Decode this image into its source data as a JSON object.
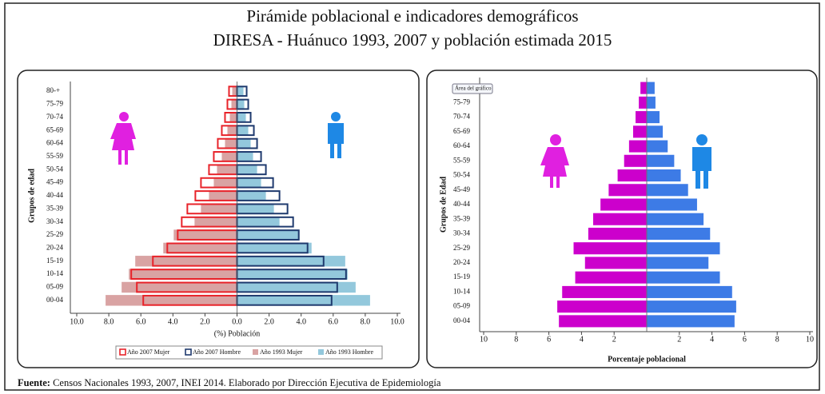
{
  "title": "Pirámide poblacional e indicadores demográficos",
  "subtitle": "DIRESA - Huánuco 1993, 2007 y población estimada 2015",
  "chart_data": [
    {
      "type": "bar",
      "orientation": "horizontal",
      "xlabel": "(%) Población",
      "ylabel": "Grupos de edad",
      "categories": [
        "00-04",
        "05-09",
        "10-14",
        "15-19",
        "20-24",
        "25-29",
        "30-34",
        "35-39",
        "40-44",
        "45-49",
        "50-54",
        "55-59",
        "60-64",
        "65-69",
        "70-74",
        "75-79",
        "80-+"
      ],
      "series": [
        {
          "name": "Año 2007 Mujer",
          "color": "#e8232a",
          "outline": true,
          "values": [
            -5.85,
            -6.25,
            -6.6,
            -5.25,
            -4.35,
            -3.7,
            -3.45,
            -3.1,
            -2.6,
            -2.25,
            -1.75,
            -1.45,
            -1.2,
            -0.95,
            -0.75,
            -0.6,
            -0.5
          ]
        },
        {
          "name": "Año 2007 Hombre",
          "color": "#1f3a6e",
          "outline": true,
          "values": [
            5.9,
            6.25,
            6.8,
            5.4,
            4.4,
            3.85,
            3.5,
            3.15,
            2.65,
            2.25,
            1.8,
            1.5,
            1.25,
            1.05,
            0.85,
            0.7,
            0.6
          ]
        },
        {
          "name": "Año 1993 Mujer",
          "color": "#d9a3a3",
          "outline": false,
          "values": [
            -8.2,
            -7.2,
            -6.75,
            -6.35,
            -4.6,
            -3.95,
            -2.65,
            -2.25,
            -1.75,
            -1.45,
            -1.25,
            -0.95,
            -0.75,
            -0.6,
            -0.45,
            -0.35,
            -0.3
          ]
        },
        {
          "name": "Año 1993 Hombre",
          "color": "#93c8dc",
          "outline": false,
          "values": [
            8.3,
            7.4,
            6.9,
            6.75,
            4.65,
            3.9,
            2.65,
            2.3,
            1.8,
            1.5,
            1.25,
            1.0,
            0.85,
            0.7,
            0.55,
            0.45,
            0.4
          ]
        }
      ],
      "xlim": [
        -10,
        10
      ],
      "xticks": [
        {
          "value": -10,
          "label": "10.0"
        },
        {
          "value": -8,
          "label": "8.0"
        },
        {
          "value": -6,
          "label": "6.0"
        },
        {
          "value": -4,
          "label": "4.0"
        },
        {
          "value": -2,
          "label": "2.0"
        },
        {
          "value": 0,
          "label": "0.0"
        },
        {
          "value": 2,
          "label": "2.0"
        },
        {
          "value": 4,
          "label": "4.0"
        },
        {
          "value": 6,
          "label": "6.0"
        },
        {
          "value": 8,
          "label": "8.0"
        },
        {
          "value": 10,
          "label": "10.0"
        }
      ],
      "legend": "bottom"
    },
    {
      "type": "bar",
      "orientation": "horizontal",
      "xlabel": "Porcentaje poblacional",
      "ylabel": "Grupos de Edad",
      "annotation": "Área del gráfico",
      "categories": [
        "00-04",
        "05-09",
        "10-14",
        "15-19",
        "20-24",
        "25-29",
        "30-34",
        "35-39",
        "40-44",
        "45-49",
        "50-54",
        "55-59",
        "60-64",
        "65-69",
        "70-74",
        "75-79",
        "80-+"
      ],
      "series": [
        {
          "color": "#cc00cc",
          "outline": false,
          "values": [
            -5.4,
            -5.5,
            -5.2,
            -4.4,
            -3.8,
            -4.5,
            -3.6,
            -3.3,
            -2.85,
            -2.35,
            -1.8,
            -1.4,
            -1.1,
            -0.85,
            -0.7,
            -0.5,
            -0.4
          ]
        },
        {
          "color": "#3d7be6",
          "outline": false,
          "values": [
            5.4,
            5.5,
            5.25,
            4.5,
            3.8,
            4.5,
            3.9,
            3.5,
            3.1,
            2.55,
            2.1,
            1.7,
            1.3,
            1.0,
            0.8,
            0.55,
            0.5
          ]
        }
      ],
      "xlim": [
        -10,
        10
      ],
      "xticks": [
        {
          "value": -10,
          "label": "10"
        },
        {
          "value": -8,
          "label": "8"
        },
        {
          "value": -6,
          "label": "6"
        },
        {
          "value": -4,
          "label": "4"
        },
        {
          "value": -2,
          "label": "2"
        },
        {
          "value": 2,
          "label": "2"
        },
        {
          "value": 4,
          "label": "4"
        },
        {
          "value": 6,
          "label": "6"
        },
        {
          "value": 8,
          "label": "8"
        },
        {
          "value": 10,
          "label": "10"
        }
      ]
    }
  ],
  "footer": {
    "label": "Fuente:",
    "text": " Censos Nacionales 1993, 2007, INEI 2014. Elaborado por Dirección Ejecutiva de Epidemiología"
  }
}
